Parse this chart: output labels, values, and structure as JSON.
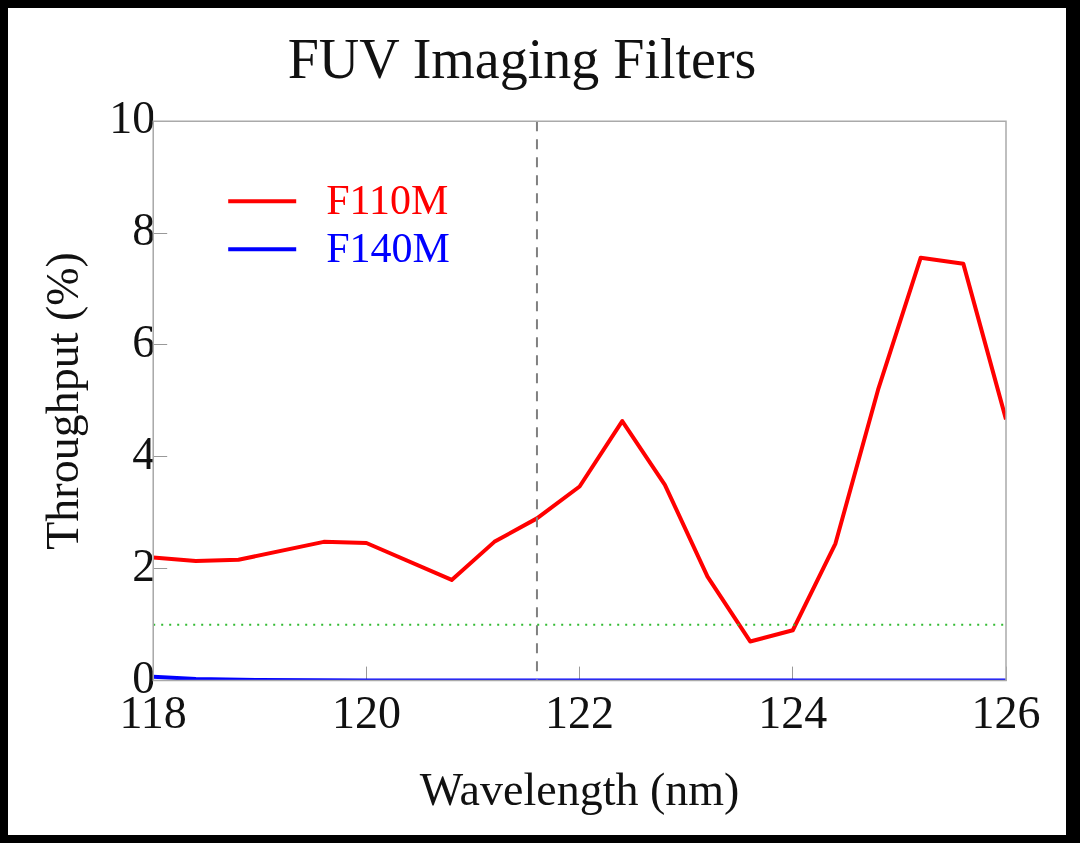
{
  "chart_data": {
    "type": "line",
    "title": "FUV Imaging Filters",
    "xlabel": "Wavelength (nm)",
    "ylabel": "Throughput (%)",
    "xlim": [
      118,
      126
    ],
    "xticks": [
      118,
      120,
      122,
      124,
      126
    ],
    "ylim": [
      0,
      10
    ],
    "yticks": [
      0,
      2,
      4,
      6,
      8,
      10
    ],
    "grid": false,
    "legend": "top left",
    "marker": "none",
    "line_style": "solid",
    "series": [
      {
        "name": "F110M",
        "color": "#ff0000",
        "x": [
          118.0,
          118.4,
          118.8,
          119.6,
          120.0,
          120.8,
          121.2,
          121.6,
          122.0,
          122.4,
          122.8,
          123.2,
          123.6,
          124.0,
          124.4,
          124.8,
          125.2,
          125.6,
          126.0
        ],
        "values": [
          2.2,
          2.14,
          2.16,
          2.48,
          2.46,
          1.8,
          2.48,
          2.9,
          3.47,
          4.64,
          3.5,
          1.86,
          0.7,
          0.9,
          2.45,
          5.2,
          7.56,
          7.45,
          4.67
        ]
      },
      {
        "name": "F140M",
        "color": "#0000ff",
        "x": [
          118.0,
          118.4,
          119.0,
          120.0,
          122.0,
          124.0,
          126.0
        ],
        "values": [
          0.07,
          0.03,
          0.01,
          0.0,
          0.0,
          0.0,
          0.0
        ]
      }
    ],
    "ref_lines": [
      {
        "axis": "x",
        "value": 121.6,
        "color": "#808080",
        "line_style": "dashed"
      },
      {
        "axis": "y",
        "value": 1,
        "color": "#33bb33",
        "line_style": "dotted"
      }
    ]
  }
}
